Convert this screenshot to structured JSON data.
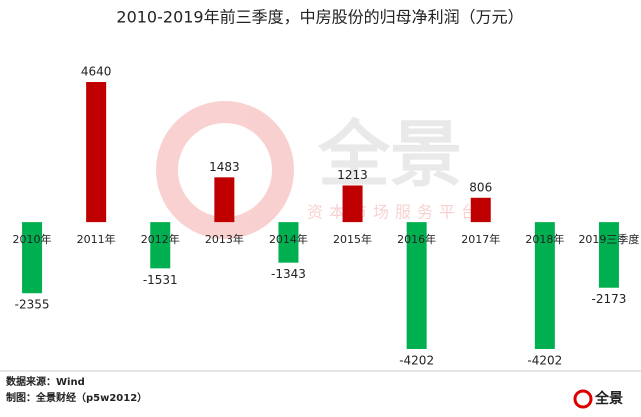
{
  "chart_data": {
    "type": "bar",
    "title": "2010-2019年前三季度，中房股份的归母净利润（万元）",
    "categories": [
      "2010年",
      "2011年",
      "2012年",
      "2013年",
      "2014年",
      "2015年",
      "2016年",
      "2017年",
      "2018年",
      "2019三季度"
    ],
    "values": [
      -2355,
      4640,
      -1531,
      1483,
      -1343,
      1213,
      -4202,
      806,
      -4202,
      -2173
    ],
    "positive_color": "#c00000",
    "negative_color": "#00b050"
  },
  "watermark": {
    "logo": "全景",
    "slogan": "资本市场服务平台"
  },
  "footer": {
    "source": "数据来源：Wind",
    "credit": "制图：全景财经（p5w2012）",
    "logo": "全景"
  }
}
